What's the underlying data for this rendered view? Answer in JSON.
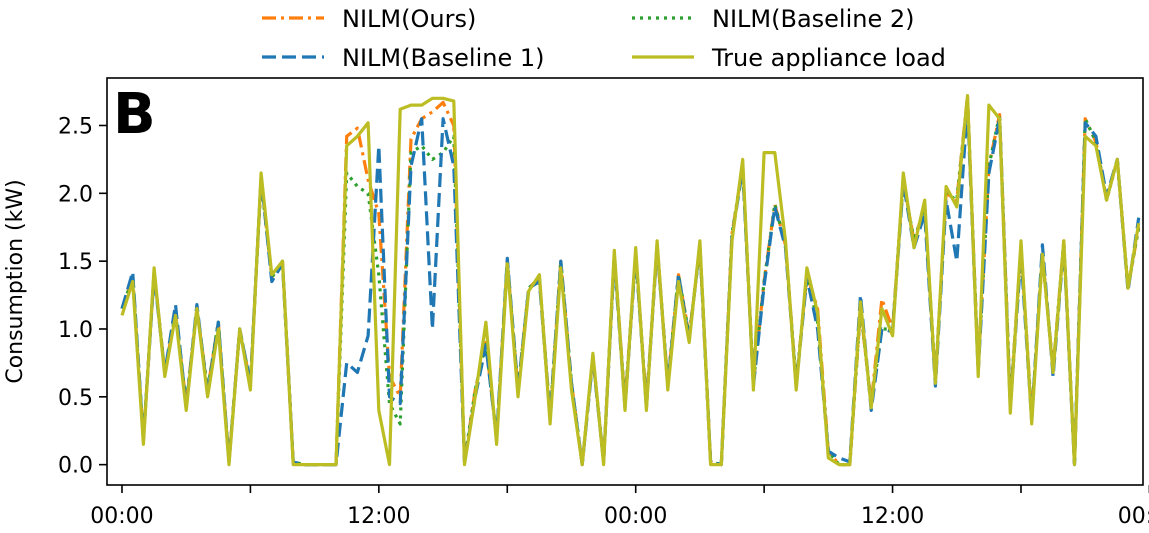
{
  "chart_data": {
    "type": "line",
    "panel_label": "B",
    "title": "",
    "xlabel": "",
    "ylabel": "Consumption (kW)",
    "ylim": [
      -0.15,
      2.85
    ],
    "yticks": [
      0.0,
      0.5,
      1.0,
      1.5,
      2.0,
      2.5
    ],
    "ytick_labels": [
      "0.0",
      "0.5",
      "1.0",
      "1.5",
      "2.0",
      "2.5"
    ],
    "xlim": [
      -0.7,
      47.7
    ],
    "xticks": [
      0,
      6,
      12,
      18,
      24,
      30,
      36,
      42,
      48
    ],
    "xtick_labels": [
      "00:00",
      "",
      "12:00",
      "",
      "00:00",
      "",
      "12:00",
      "",
      "00:00"
    ],
    "grid": false,
    "legend_position": "top-outside",
    "legend_order": [
      "NILM(Ours)",
      "NILM(Baseline 2)",
      "NILM(Baseline 1)",
      "True appliance load"
    ],
    "x_unit": "hours from first midnight",
    "x": [
      0,
      0.5,
      1,
      1.5,
      2,
      2.5,
      3,
      3.5,
      4,
      4.5,
      5,
      5.5,
      6,
      6.5,
      7,
      7.5,
      8,
      8.5,
      9,
      9.5,
      10,
      10.5,
      11,
      11.5,
      12,
      12.5,
      13,
      13.5,
      14,
      14.5,
      15,
      15.5,
      16,
      16.5,
      17,
      17.5,
      18,
      18.5,
      19,
      19.5,
      20,
      20.5,
      21,
      21.5,
      22,
      22.5,
      23,
      23.5,
      24,
      24.5,
      25,
      25.5,
      26,
      26.5,
      27,
      27.5,
      28,
      28.5,
      29,
      29.5,
      30,
      30.5,
      31,
      31.5,
      32,
      32.5,
      33,
      33.5,
      34,
      34.5,
      35,
      35.5,
      36,
      36.5,
      37,
      37.5,
      38,
      38.5,
      39,
      39.5,
      40,
      40.5,
      41,
      41.5,
      42,
      42.5,
      43,
      43.5,
      44,
      44.5,
      45,
      45.5,
      46,
      46.5,
      47,
      47.5
    ],
    "series": [
      {
        "name": "NILM(Ours)",
        "color": "#ff7f0e",
        "dash": "14,5,3,5",
        "values": [
          1.15,
          1.38,
          0.18,
          1.42,
          0.68,
          1.12,
          0.45,
          1.15,
          0.55,
          1.05,
          0.02,
          1.0,
          0.6,
          2.1,
          1.38,
          1.5,
          0.02,
          0.0,
          0.0,
          0.0,
          0.0,
          2.42,
          2.48,
          2.1,
          1.85,
          0.65,
          0.5,
          2.4,
          2.55,
          2.6,
          2.67,
          2.5,
          0.02,
          0.55,
          0.9,
          0.2,
          1.5,
          0.55,
          1.3,
          1.38,
          0.35,
          1.5,
          0.6,
          0.0,
          0.8,
          0.02,
          1.55,
          0.45,
          1.55,
          0.45,
          1.6,
          0.6,
          1.4,
          0.95,
          1.6,
          0.02,
          0.0,
          1.7,
          2.2,
          0.6,
          1.35,
          1.92,
          1.62,
          0.6,
          1.4,
          1.15,
          0.1,
          0.0,
          0.0,
          1.15,
          0.45,
          1.22,
          1.0,
          2.1,
          1.65,
          1.9,
          0.62,
          2.0,
          1.95,
          2.72,
          0.7,
          2.2,
          2.58,
          0.45,
          1.6,
          0.35,
          1.55,
          0.7,
          1.65,
          0.0,
          2.55,
          2.38,
          1.95,
          2.25,
          1.3,
          1.75
        ]
      },
      {
        "name": "NILM(Baseline 2)",
        "color": "#2ca02c",
        "dash": "3,5",
        "values": [
          1.15,
          1.38,
          0.18,
          1.42,
          0.68,
          1.12,
          0.45,
          1.15,
          0.55,
          1.05,
          0.02,
          1.0,
          0.6,
          2.1,
          1.38,
          1.5,
          0.02,
          0.0,
          0.0,
          0.0,
          0.0,
          2.15,
          2.05,
          2.0,
          1.4,
          0.45,
          0.3,
          2.3,
          2.35,
          2.25,
          2.3,
          2.42,
          0.02,
          0.55,
          0.9,
          0.2,
          1.5,
          0.55,
          1.3,
          1.38,
          0.35,
          1.5,
          0.6,
          0.0,
          0.8,
          0.02,
          1.55,
          0.45,
          1.55,
          0.45,
          1.6,
          0.6,
          1.4,
          0.95,
          1.6,
          0.02,
          0.0,
          1.7,
          2.2,
          0.6,
          1.35,
          1.92,
          1.62,
          0.6,
          1.4,
          1.05,
          0.1,
          0.0,
          0.0,
          1.15,
          0.45,
          1.0,
          1.0,
          2.1,
          1.65,
          1.9,
          0.62,
          2.0,
          1.95,
          2.7,
          0.7,
          2.2,
          2.58,
          0.45,
          1.6,
          0.35,
          1.55,
          0.7,
          1.65,
          0.0,
          2.55,
          2.38,
          1.95,
          2.25,
          1.3,
          1.75
        ]
      },
      {
        "name": "NILM(Baseline 1)",
        "color": "#1f77b4",
        "dash": "14,6",
        "values": [
          1.15,
          1.42,
          0.18,
          1.4,
          0.68,
          1.18,
          0.42,
          1.18,
          0.52,
          1.05,
          0.02,
          1.0,
          0.6,
          2.12,
          1.35,
          1.48,
          0.02,
          0.0,
          0.0,
          0.0,
          0.0,
          0.75,
          0.68,
          0.95,
          2.35,
          0.5,
          0.45,
          2.2,
          2.55,
          1.0,
          2.55,
          2.2,
          0.02,
          0.5,
          0.88,
          0.2,
          1.52,
          0.55,
          1.3,
          1.35,
          0.35,
          1.5,
          0.6,
          0.0,
          0.78,
          0.02,
          1.52,
          0.42,
          1.55,
          0.42,
          1.62,
          0.58,
          1.4,
          0.92,
          1.62,
          0.02,
          0.0,
          1.68,
          2.18,
          0.58,
          1.32,
          1.9,
          1.6,
          0.58,
          1.38,
          1.0,
          0.1,
          0.05,
          0.02,
          1.25,
          0.4,
          1.0,
          0.98,
          2.08,
          1.6,
          1.85,
          0.58,
          1.95,
          1.5,
          2.65,
          0.68,
          2.15,
          2.55,
          0.42,
          1.55,
          0.32,
          1.62,
          0.65,
          1.62,
          0.0,
          2.52,
          2.42,
          1.98,
          2.25,
          1.28,
          1.82
        ]
      },
      {
        "name": "True appliance load",
        "color": "#bcbd22",
        "dash": "",
        "values": [
          1.1,
          1.35,
          0.15,
          1.45,
          0.65,
          1.1,
          0.4,
          1.15,
          0.5,
          1.0,
          0.0,
          1.0,
          0.55,
          2.15,
          1.4,
          1.5,
          0.0,
          0.0,
          0.0,
          0.0,
          0.0,
          2.35,
          2.42,
          2.52,
          0.4,
          0.0,
          2.62,
          2.65,
          2.65,
          2.7,
          2.7,
          2.68,
          0.0,
          0.5,
          1.05,
          0.15,
          1.48,
          0.5,
          1.28,
          1.4,
          0.3,
          1.45,
          0.55,
          0.0,
          0.82,
          0.0,
          1.58,
          0.4,
          1.6,
          0.4,
          1.65,
          0.55,
          1.35,
          0.9,
          1.65,
          0.0,
          0.0,
          1.65,
          2.25,
          0.55,
          2.3,
          2.3,
          1.65,
          0.55,
          1.45,
          1.12,
          0.05,
          0.0,
          0.0,
          1.2,
          0.42,
          1.15,
          0.95,
          2.15,
          1.6,
          1.95,
          0.6,
          2.05,
          1.9,
          2.72,
          0.65,
          2.65,
          2.55,
          0.38,
          1.65,
          0.3,
          1.55,
          0.68,
          1.65,
          0.0,
          2.42,
          2.35,
          1.95,
          2.25,
          1.3,
          1.78
        ]
      }
    ]
  }
}
